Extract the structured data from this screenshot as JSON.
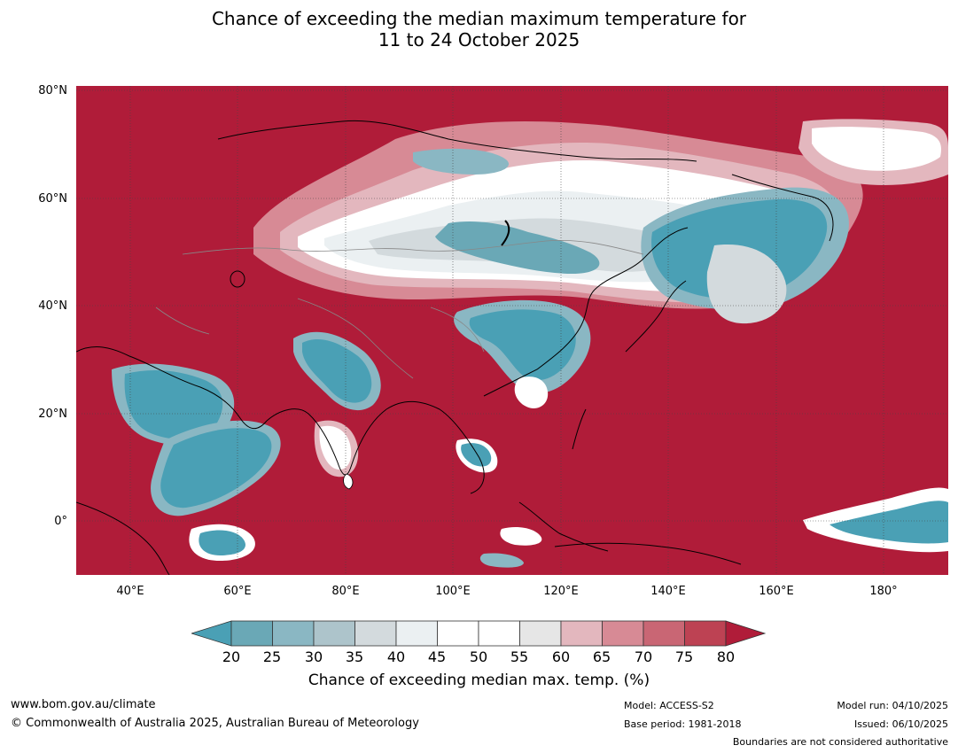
{
  "title": {
    "line1": "Chance of exceeding the median maximum temperature for",
    "line2": "11 to 24 October 2025"
  },
  "map": {
    "ocean_fill": "#b01c39",
    "lat_labels": [
      "80°N",
      "60°N",
      "40°N",
      "20°N",
      "0°"
    ],
    "lon_labels": [
      "40°E",
      "60°E",
      "80°E",
      "100°E",
      "120°E",
      "140°E",
      "160°E",
      "180°"
    ],
    "extent": {
      "lon_min": 30,
      "lon_max": 192,
      "lat_min": -10,
      "lat_max": 81
    }
  },
  "colorbar": {
    "ticks": [
      "20",
      "25",
      "30",
      "35",
      "40",
      "45",
      "50",
      "55",
      "60",
      "65",
      "70",
      "75",
      "80"
    ],
    "colors": [
      "#4aa0b5",
      "#6aa8b6",
      "#8ab7c3",
      "#adc4cb",
      "#d3dadd",
      "#ebf0f2",
      "#ffffff",
      "#ffffff",
      "#e6e6e6",
      "#e3b7be",
      "#d78a95",
      "#c96674",
      "#bd4253",
      "#b01c39"
    ],
    "label": "Chance of exceeding median max. temp. (%)"
  },
  "footer": {
    "website": "www.bom.gov.au/climate",
    "copyright": "© Commonwealth of Australia 2025, Australian Bureau of Meteorology",
    "model": "Model: ACCESS-S2",
    "base_period": "Base period: 1981-2018",
    "model_run": "Model run: 04/10/2025",
    "issued": "Issued: 06/10/2025",
    "boundaries": "Boundaries are not considered authoritative"
  }
}
